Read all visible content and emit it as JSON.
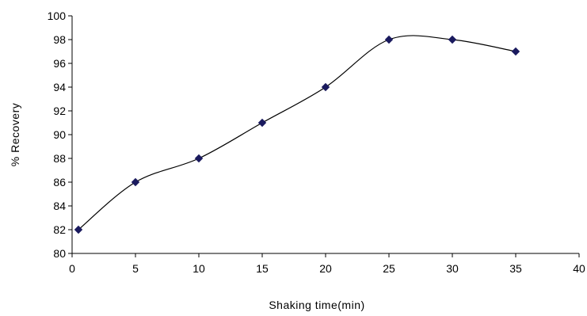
{
  "chart_data": {
    "type": "line",
    "title": "",
    "xlabel": "Shaking time(min)",
    "ylabel": "% Recovery",
    "xlim": [
      0,
      40
    ],
    "ylim": [
      80,
      100
    ],
    "xticks": [
      0,
      5,
      10,
      15,
      20,
      25,
      30,
      35,
      40
    ],
    "yticks": [
      80,
      82,
      84,
      86,
      88,
      90,
      92,
      94,
      96,
      98,
      100
    ],
    "grid": false,
    "legend": "none",
    "series": [
      {
        "x": [
          0.5,
          5,
          10,
          15,
          20,
          25,
          30,
          35
        ],
        "y": [
          82,
          86,
          88,
          91,
          94,
          98,
          98,
          97
        ],
        "marker": "diamond",
        "marker_color": "#1a1a5e",
        "line_color": "#000000",
        "smooth": true
      }
    ]
  }
}
